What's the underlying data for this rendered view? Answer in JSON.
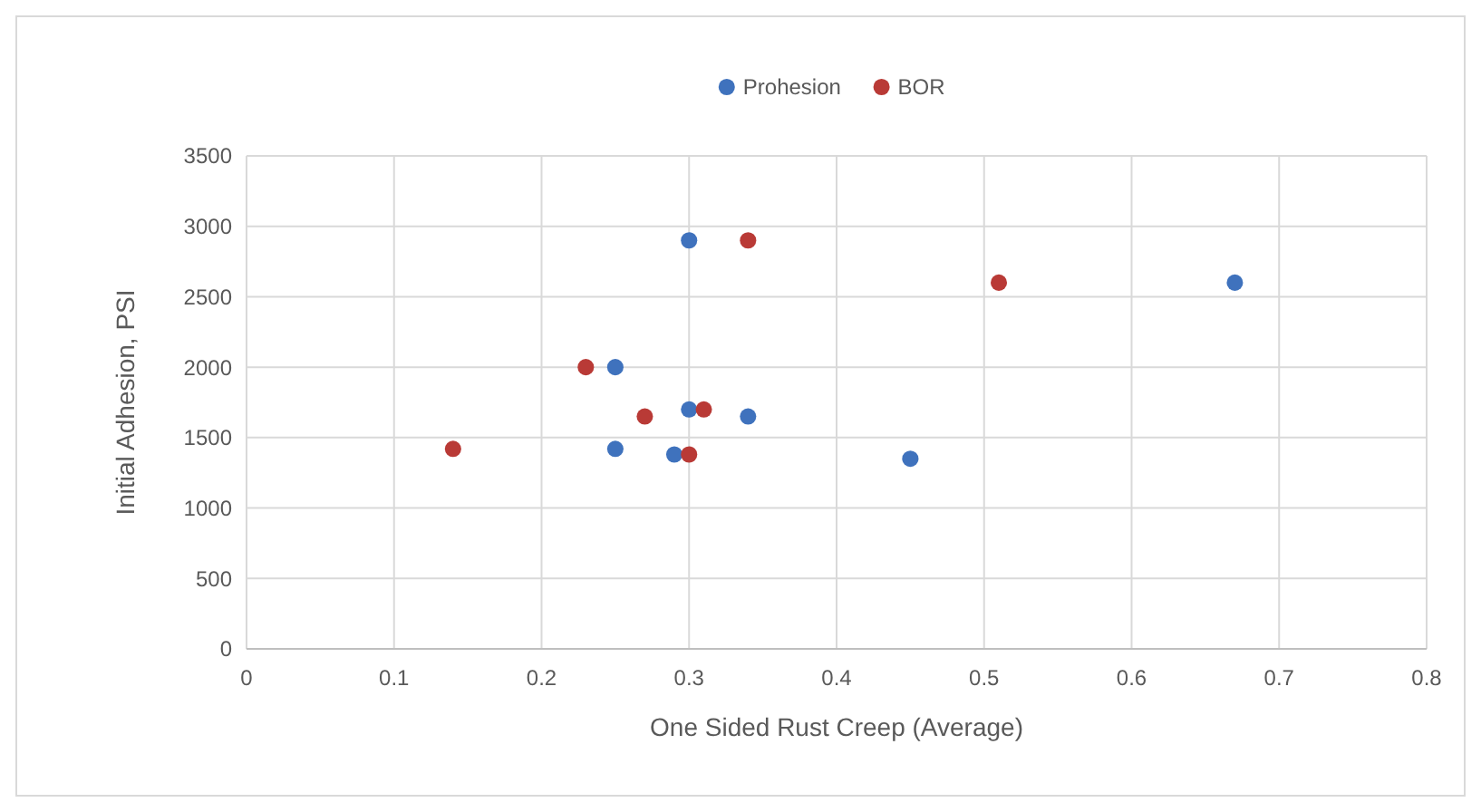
{
  "chart_data": {
    "type": "scatter",
    "xlabel": "One Sided Rust Creep (Average)",
    "ylabel": "Initial Adhesion, PSI",
    "xlim": [
      0,
      0.8
    ],
    "xticks": [
      0,
      0.1,
      0.2,
      0.3,
      0.4,
      0.5,
      0.6,
      0.7,
      0.8
    ],
    "ylim": [
      0,
      3500
    ],
    "yticks": [
      0,
      500,
      1000,
      1500,
      2000,
      2500,
      3000,
      3500
    ],
    "grid": true,
    "legend": "top",
    "marker": "circle",
    "series": [
      {
        "name": "Prohesion",
        "color": "#3f72bd",
        "x": [
          0.3,
          0.25,
          0.3,
          0.34,
          0.25,
          0.29,
          0.45,
          0.67
        ],
        "values": [
          2900,
          2000,
          1700,
          1650,
          1420,
          1380,
          1350,
          2600
        ]
      },
      {
        "name": "BOR",
        "color": "#b93a36",
        "x": [
          0.34,
          0.51,
          0.23,
          0.27,
          0.31,
          0.14,
          0.3
        ],
        "values": [
          2900,
          2600,
          2000,
          1650,
          1700,
          1420,
          1380
        ]
      }
    ]
  }
}
